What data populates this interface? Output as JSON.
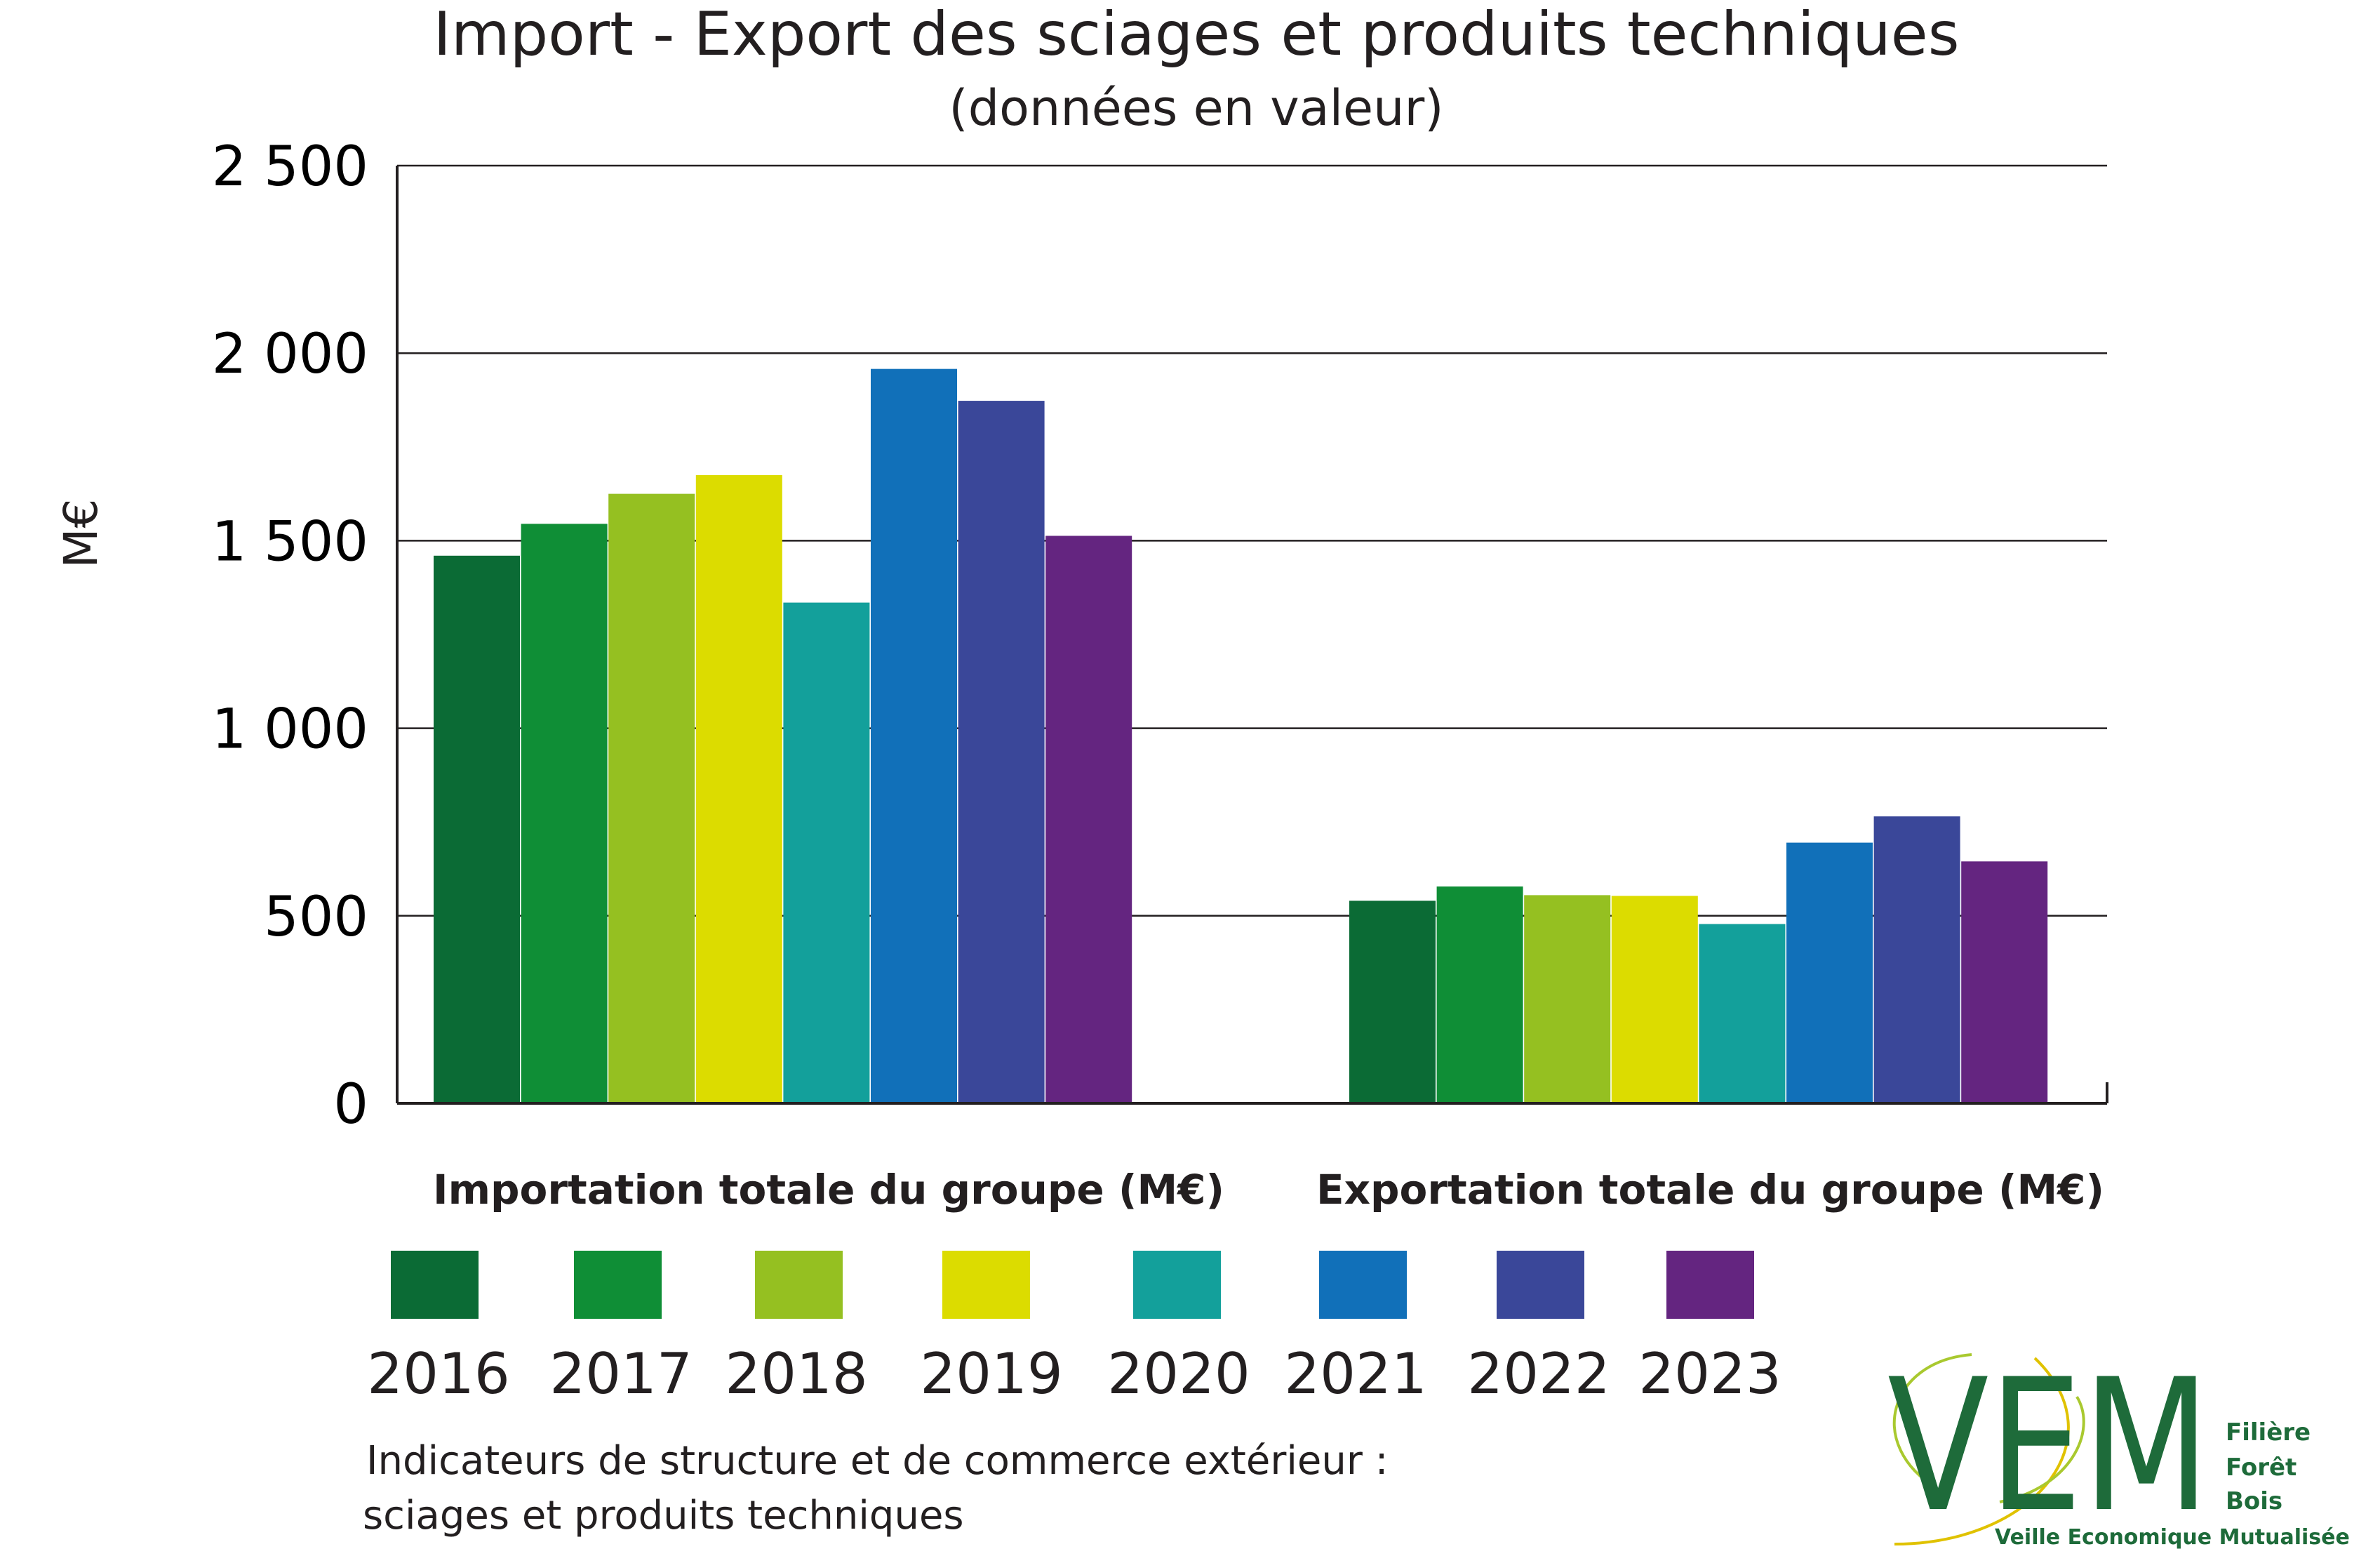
{
  "chart_data": {
    "type": "bar",
    "title": "Import - Export des sciages et produits techniques",
    "subtitle": "(données en valeur)",
    "ylabel": "M€",
    "ylim": [
      0,
      2500
    ],
    "yticks": [
      0,
      500,
      1000,
      1500,
      2000,
      2500
    ],
    "ytick_labels": [
      "0",
      "500",
      "1 000",
      "1 500",
      "2 000",
      "2 500"
    ],
    "grid": true,
    "categories": [
      "Importation totale du groupe (M€)",
      "Exportation totale du groupe (M€)"
    ],
    "series": [
      {
        "name": "2016",
        "color": "#0b6b35",
        "values": [
          1460,
          540
        ]
      },
      {
        "name": "2017",
        "color": "#0f8e36",
        "values": [
          1545,
          578
        ]
      },
      {
        "name": "2018",
        "color": "#95c021",
        "values": [
          1625,
          555
        ]
      },
      {
        "name": "2019",
        "color": "#dcdc00",
        "values": [
          1675,
          553
        ]
      },
      {
        "name": "2020",
        "color": "#13a09b",
        "values": [
          1335,
          478
        ]
      },
      {
        "name": "2021",
        "color": "#1170b9",
        "values": [
          1958,
          695
        ]
      },
      {
        "name": "2022",
        "color": "#3a4799",
        "values": [
          1873,
          765
        ]
      },
      {
        "name": "2023",
        "color": "#642580",
        "values": [
          1513,
          645
        ]
      }
    ],
    "legend_position": "bottom"
  },
  "caption": {
    "line1": "Indicateurs de structure et de commerce extérieur :",
    "line2": "sciages et produits techniques"
  },
  "logo": {
    "letters": "VEM",
    "word1": "Filière",
    "word2": "Forêt",
    "word3": "Bois",
    "tagline": "Veille Economique Mutualisée"
  }
}
